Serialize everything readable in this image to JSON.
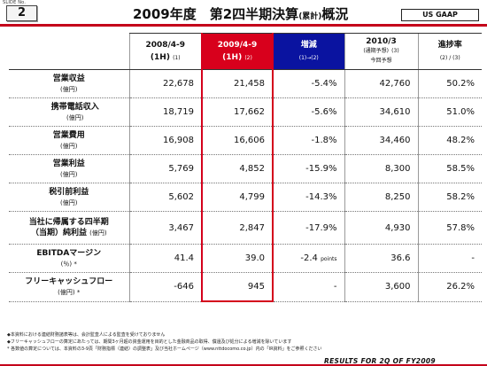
{
  "slide": {
    "label": "SLIDE No.",
    "number": "2"
  },
  "title": {
    "main": "2009年度　第2四半期決算",
    "sub": "(累計)",
    "tail": "概況"
  },
  "badge": "US GAAP",
  "columns": [
    {
      "line1": "2008/4-9",
      "line2": "(1H)",
      "note": "(1)"
    },
    {
      "line1": "2009/4-9",
      "line2": "(1H)",
      "note": "(2)"
    },
    {
      "line1": "増減",
      "line2": "(1)→(2)",
      "note": ""
    },
    {
      "line1": "2010/3",
      "line2": "(通期予想)",
      "note": "(3)",
      "line3": "今回予想"
    },
    {
      "line1": "進捗率",
      "line2": "(2) / (3)",
      "note": ""
    }
  ],
  "rows": [
    {
      "label": "営業収益",
      "unit": "(億円)",
      "vals": [
        "22,678",
        "21,458",
        "-5.4%",
        "42,760",
        "50.2%"
      ]
    },
    {
      "label": "携帯電話収入",
      "unit": "(億円)",
      "vals": [
        "18,719",
        "17,662",
        "-5.6%",
        "34,610",
        "51.0%"
      ]
    },
    {
      "label": "営業費用",
      "unit": "(億円)",
      "vals": [
        "16,908",
        "16,606",
        "-1.8%",
        "34,460",
        "48.2%"
      ]
    },
    {
      "label": "営業利益",
      "unit": "(億円)",
      "vals": [
        "5,769",
        "4,852",
        "-15.9%",
        "8,300",
        "58.5%"
      ]
    },
    {
      "label": "税引前利益",
      "unit": "(億円)",
      "vals": [
        "5,602",
        "4,799",
        "-14.3%",
        "8,250",
        "58.2%"
      ]
    },
    {
      "label": "当社に帰属する四半期",
      "label2": "（当期）純利益",
      "unit": "(億円)",
      "vals": [
        "3,467",
        "2,847",
        "-17.9%",
        "4,930",
        "57.8%"
      ]
    },
    {
      "label": "EBITDAマージン",
      "unit": "(％) *",
      "vals": [
        "41.4",
        "39.0",
        "-2.4",
        "36.6",
        "-"
      ],
      "pts": "points"
    },
    {
      "label": "フリーキャッシュフロー",
      "unit": "(億円) *",
      "vals": [
        "-646",
        "945",
        "-",
        "3,600",
        "26.2%"
      ]
    }
  ],
  "notes": [
    "◆本資料における連結財務諸表等は、会計監査人による監査を受けておりません",
    "◆フリーキャッシュフローの算定にあたっては、期間3ヶ月超の資金運用を目的とした金融商品の取得、償還及び処分による増減を除いています",
    "* 各数値の算定については、本資料の3-9頁「財務指標（連結）の調整表」及び当社ホームページ（www.nttdocomo.co.jp）内の「IR資料」をご参照ください"
  ],
  "footer": "RESULTS FOR 2Q OF FY2009"
}
